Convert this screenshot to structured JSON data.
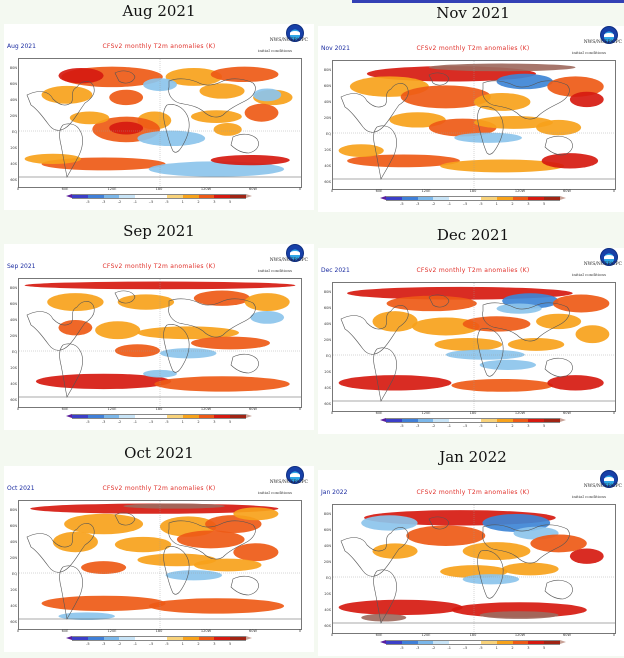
{
  "panels": [
    {
      "title": "Aug 2021",
      "month_label": "Aug 2021"
    },
    {
      "title": "Nov 2021",
      "month_label": "Nov 2021"
    },
    {
      "title": "Sep 2021",
      "month_label": "Sep 2021"
    },
    {
      "title": "Dec 2021",
      "month_label": "Dec 2021"
    },
    {
      "title": "Oct 2021",
      "month_label": "Oct 2021"
    },
    {
      "title": "Jan 2022",
      "month_label": "Jan 2022"
    }
  ],
  "map_title": "CFSv2 monthly T2m anomalies (K)",
  "org_label": "NWS/NCEP/CPC",
  "init_label": "initial conditions",
  "lat_ticks": [
    "80N",
    "60N",
    "40N",
    "20N",
    "EQ",
    "20S",
    "40S",
    "60S"
  ],
  "lon_ticks": [
    "0",
    "60E",
    "120E",
    "180",
    "120W",
    "60W",
    "0"
  ],
  "colorbar_labels": [
    "-5",
    "-3",
    "-2",
    "-1",
    "-.5",
    ".5",
    "1",
    "2",
    "3",
    "5"
  ],
  "colors": {
    "warm_light": "#f7a21b",
    "warm_mid": "#ee5a16",
    "warm_strong": "#d61a10",
    "warm_extreme": "#9e6a5e",
    "cool_light": "#8cc4ec",
    "cool_mid": "#3e86d6",
    "cool_strong": "#2a45b5",
    "land_outline": "#555555",
    "title_red": "#e0302a",
    "month_blue": "#1a2ba0",
    "colorbar": [
      "#5b1f9c",
      "#3b3fc8",
      "#3f7fd8",
      "#7bb7ea",
      "#c8e4f7",
      "#ffffff",
      "#ffffff",
      "#f8d27a",
      "#f7a21b",
      "#ee5a16",
      "#d61a10",
      "#a02414",
      "#c9a398"
    ]
  }
}
